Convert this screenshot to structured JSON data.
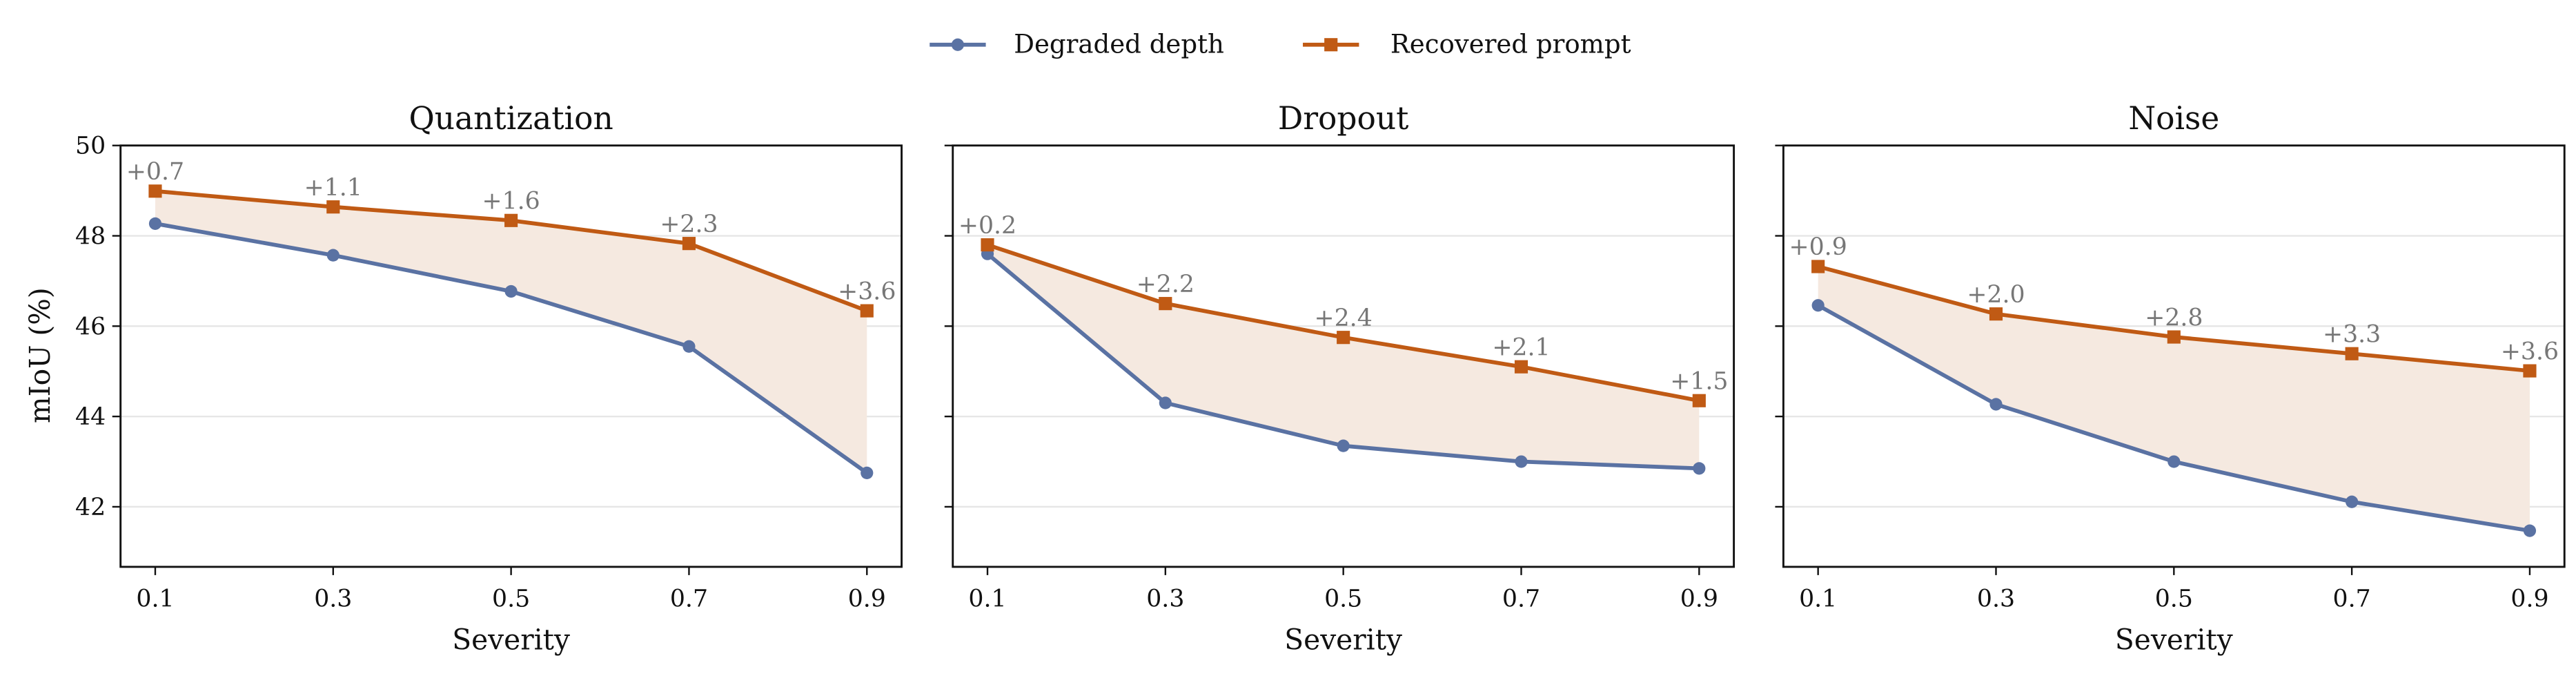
{
  "chart_data": [
    {
      "type": "line",
      "title": "Quantization",
      "xlabel": "Severity",
      "ylabel": "mIoU (%)",
      "x": [
        0.1,
        0.3,
        0.5,
        0.7,
        0.9
      ],
      "series": [
        {
          "name": "Degraded depth",
          "values": [
            48.27,
            47.57,
            46.77,
            45.55,
            42.75
          ]
        },
        {
          "name": "Recovered prompt",
          "values": [
            48.99,
            48.64,
            48.34,
            47.83,
            46.34
          ]
        }
      ],
      "annotations": [
        "+0.7",
        "+1.1",
        "+1.6",
        "+2.3",
        "+3.6"
      ]
    },
    {
      "type": "line",
      "title": "Dropout",
      "xlabel": "Severity",
      "ylabel": "",
      "x": [
        0.1,
        0.3,
        0.5,
        0.7,
        0.9
      ],
      "series": [
        {
          "name": "Degraded depth",
          "values": [
            47.6,
            44.3,
            43.35,
            43.0,
            42.85
          ]
        },
        {
          "name": "Recovered prompt",
          "values": [
            47.8,
            46.5,
            45.75,
            45.1,
            44.35
          ]
        }
      ],
      "annotations": [
        "+0.2",
        "+2.2",
        "+2.4",
        "+2.1",
        "+1.5"
      ]
    },
    {
      "type": "line",
      "title": "Noise",
      "xlabel": "Severity",
      "ylabel": "",
      "x": [
        0.1,
        0.3,
        0.5,
        0.7,
        0.9
      ],
      "series": [
        {
          "name": "Degraded depth",
          "values": [
            46.46,
            44.27,
            43.0,
            42.11,
            41.47
          ]
        },
        {
          "name": "Recovered prompt",
          "values": [
            47.32,
            46.27,
            45.76,
            45.39,
            45.01
          ]
        }
      ],
      "annotations": [
        "+0.9",
        "+2.0",
        "+2.8",
        "+3.3",
        "+3.6"
      ]
    }
  ],
  "shared": {
    "ylim": [
      40.67,
      50.0
    ],
    "xlim": [
      0.061,
      0.939
    ],
    "yticks": [
      "42",
      "44",
      "46",
      "48",
      "50"
    ],
    "xticks": [
      "0.1",
      "0.3",
      "0.5",
      "0.7",
      "0.9"
    ],
    "sharey": true,
    "grid": "horizontal",
    "legend": {
      "placement": "top-center",
      "entries": [
        "Degraded depth",
        "Recovered prompt"
      ]
    },
    "colors": {
      "degraded": "#5a72a3",
      "recovered": "#c05a14",
      "fill": "#f5e9e0",
      "annotation": "#777777",
      "grid": "#e6e6e6"
    },
    "markers": {
      "degraded": "circle",
      "recovered": "square"
    }
  }
}
